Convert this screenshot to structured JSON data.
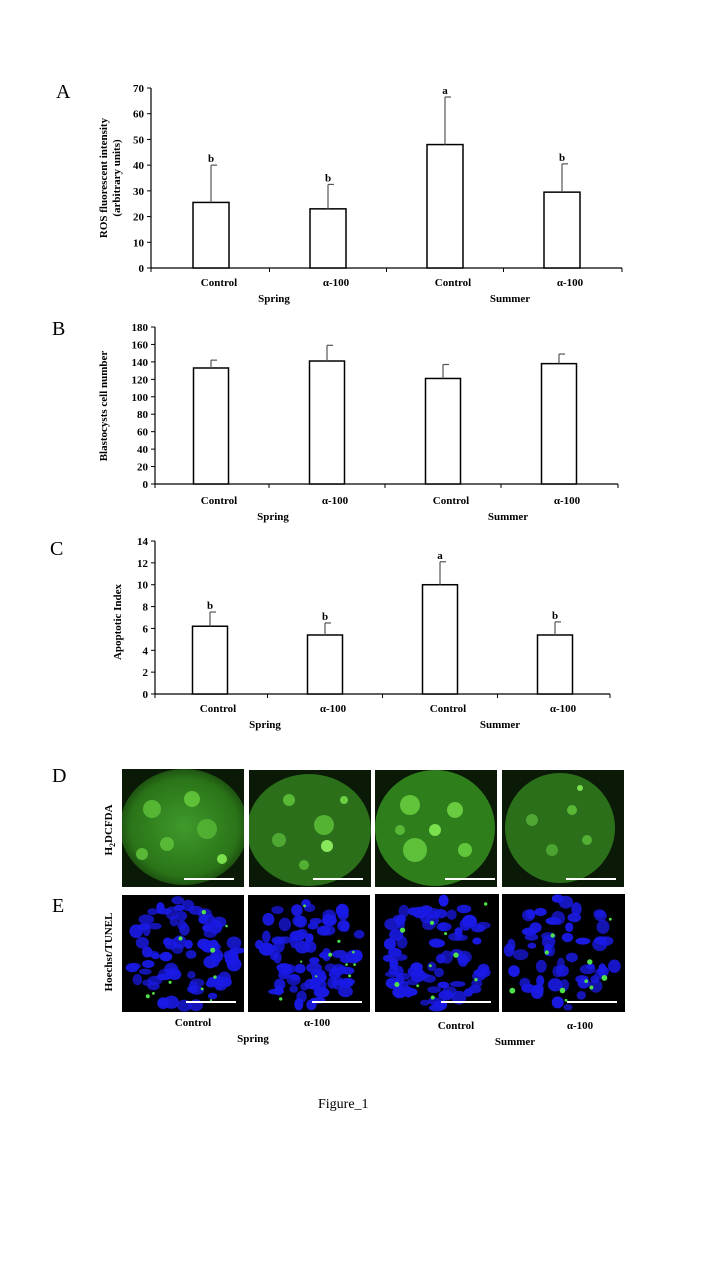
{
  "panels": [
    "A",
    "B",
    "C",
    "D",
    "E"
  ],
  "chart_data": [
    {
      "type": "bar",
      "ylabel": "ROS fluorescent intensity\n(arbitrary units)",
      "ylim": [
        0,
        70
      ],
      "yticks": [
        0,
        10,
        20,
        30,
        40,
        50,
        60,
        70
      ],
      "categories": [
        "Control",
        "α-100",
        "Control",
        "α-100"
      ],
      "groups": [
        "Spring",
        "Summer"
      ],
      "values": [
        25.5,
        23,
        48,
        29.5
      ],
      "errors": [
        14.5,
        9.5,
        18.5,
        11
      ],
      "letters": [
        "b",
        "b",
        "a",
        "b"
      ]
    },
    {
      "type": "bar",
      "ylabel": "Blastocysts cell number",
      "ylim": [
        0,
        180
      ],
      "yticks": [
        0,
        20,
        40,
        60,
        80,
        100,
        120,
        140,
        160,
        180
      ],
      "categories": [
        "Control",
        "α-100",
        "Control",
        "α-100"
      ],
      "groups": [
        "Spring",
        "Summer"
      ],
      "values": [
        133,
        141,
        121,
        138
      ],
      "errors": [
        9,
        18,
        16,
        11
      ],
      "letters": [
        "",
        "",
        "",
        ""
      ]
    },
    {
      "type": "bar",
      "ylabel": "Apoptotic Index",
      "ylim": [
        0,
        14
      ],
      "yticks": [
        0,
        2,
        4,
        6,
        8,
        10,
        12,
        14
      ],
      "categories": [
        "Control",
        "α-100",
        "Control",
        "α-100"
      ],
      "groups": [
        "Spring",
        "Summer"
      ],
      "values": [
        6.2,
        5.4,
        10,
        5.4
      ],
      "errors": [
        1.3,
        1.1,
        2.1,
        1.2
      ],
      "letters": [
        "b",
        "b",
        "a",
        "b"
      ]
    }
  ],
  "microscopy": {
    "row_d_label": "H2DCFDA",
    "row_e_label": "Hoechst/TUNEL",
    "columns": [
      "Control",
      "α-100",
      "Control",
      "α-100"
    ],
    "groups": [
      "Spring",
      "Summer"
    ],
    "colors": {
      "h2dcfda": "#2e8a1f",
      "hoechst": "#1a1ae6",
      "tunel": "#4fe04a"
    }
  },
  "caption": "Figure_1"
}
